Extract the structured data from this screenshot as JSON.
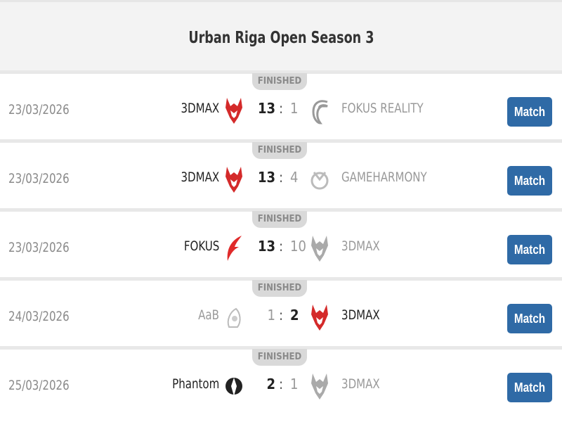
{
  "title": "Urban Riga Open Season 3",
  "status_label": "FINISHED",
  "button_label": "Match",
  "colors": {
    "accent": "#2f6aa6",
    "red_logo": "#d42a2a"
  },
  "matches": [
    {
      "date": "23/03/2026",
      "home": "3DMAX",
      "home_logo": "3dmax-red-icon",
      "home_score": "13",
      "away_score": "1",
      "away": "FOKUS REALITY",
      "away_logo": "fokus-gray-icon",
      "winner": "home"
    },
    {
      "date": "23/03/2026",
      "home": "3DMAX",
      "home_logo": "3dmax-red-icon",
      "home_score": "13",
      "away_score": "4",
      "away": "GAMEHARMONY",
      "away_logo": "gameharmony-gray-icon",
      "winner": "home"
    },
    {
      "date": "23/03/2026",
      "home": "FOKUS",
      "home_logo": "fokus-red-icon",
      "home_score": "13",
      "away_score": "10",
      "away": "3DMAX",
      "away_logo": "3dmax-gray-icon",
      "winner": "home"
    },
    {
      "date": "24/03/2026",
      "home": "AaB",
      "home_logo": "aab-gray-icon",
      "home_score": "1",
      "away_score": "2",
      "away": "3DMAX",
      "away_logo": "3dmax-red-icon",
      "winner": "away"
    },
    {
      "date": "25/03/2026",
      "home": "Phantom",
      "home_logo": "phantom-black-icon",
      "home_score": "2",
      "away_score": "1",
      "away": "3DMAX",
      "away_logo": "3dmax-gray-icon",
      "winner": "home"
    }
  ]
}
